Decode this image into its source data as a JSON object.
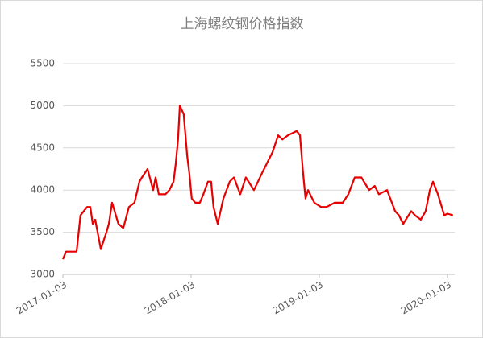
{
  "chart_data": {
    "type": "line",
    "title": "上海螺纹钢价格指数",
    "x": [
      "2017-01-03",
      "2017-01-12",
      "2017-02-11",
      "2017-02-22",
      "2017-03-13",
      "2017-03-22",
      "2017-03-29",
      "2017-04-05",
      "2017-04-21",
      "2017-05-07",
      "2017-05-14",
      "2017-05-23",
      "2017-06-10",
      "2017-06-24",
      "2017-07-10",
      "2017-07-26",
      "2017-08-09",
      "2017-08-16",
      "2017-09-01",
      "2017-09-17",
      "2017-09-24",
      "2017-10-03",
      "2017-10-22",
      "2017-11-02",
      "2017-11-14",
      "2017-11-20",
      "2017-11-27",
      "2017-12-02",
      "2017-12-13",
      "2017-12-23",
      "2017-12-29",
      "2018-01-05",
      "2018-01-15",
      "2018-01-28",
      "2018-02-07",
      "2018-02-20",
      "2018-03-01",
      "2018-03-08",
      "2018-03-20",
      "2018-04-05",
      "2018-04-23",
      "2018-05-05",
      "2018-05-23",
      "2018-06-08",
      "2018-07-01",
      "2018-07-24",
      "2018-08-23",
      "2018-09-08",
      "2018-09-20",
      "2018-10-06",
      "2018-10-31",
      "2018-11-09",
      "2018-11-18",
      "2018-11-25",
      "2018-12-02",
      "2018-12-20",
      "2019-01-08",
      "2019-01-24",
      "2019-02-16",
      "2019-03-11",
      "2019-03-27",
      "2019-04-14",
      "2019-05-03",
      "2019-05-25",
      "2019-06-10",
      "2019-06-22",
      "2019-07-15",
      "2019-08-07",
      "2019-08-18",
      "2019-08-30",
      "2019-09-22",
      "2019-10-03",
      "2019-10-19",
      "2019-11-02",
      "2019-11-14",
      "2019-11-23",
      "2019-12-07",
      "2019-12-18",
      "2019-12-25",
      "2020-01-03",
      "2020-01-19"
    ],
    "values": [
      3180,
      3270,
      3270,
      3700,
      3800,
      3800,
      3600,
      3650,
      3300,
      3500,
      3600,
      3850,
      3600,
      3550,
      3800,
      3850,
      4100,
      4150,
      4250,
      4000,
      4150,
      3950,
      3950,
      4000,
      4100,
      4300,
      4600,
      5000,
      4900,
      4400,
      4200,
      3900,
      3850,
      3850,
      3950,
      4100,
      4100,
      3800,
      3600,
      3900,
      4100,
      4150,
      3950,
      4150,
      4000,
      4200,
      4450,
      4650,
      4600,
      4650,
      4700,
      4650,
      4200,
      3900,
      4000,
      3850,
      3800,
      3800,
      3850,
      3850,
      3950,
      4150,
      4150,
      4000,
      4050,
      3950,
      4000,
      3750,
      3700,
      3600,
      3750,
      3700,
      3650,
      3750,
      4000,
      4100,
      3950,
      3800,
      3700,
      3720,
      3700
    ],
    "color": "#e60000",
    "xlim": [
      "2017-01-03",
      "2020-01-24"
    ],
    "xticks": [
      "2017-01-03",
      "2018-01-03",
      "2019-01-03",
      "2020-01-03"
    ],
    "ylim": [
      3000,
      5500
    ],
    "yticks": [
      3000,
      3500,
      4000,
      4500,
      5000,
      5500
    ],
    "grid": true
  }
}
